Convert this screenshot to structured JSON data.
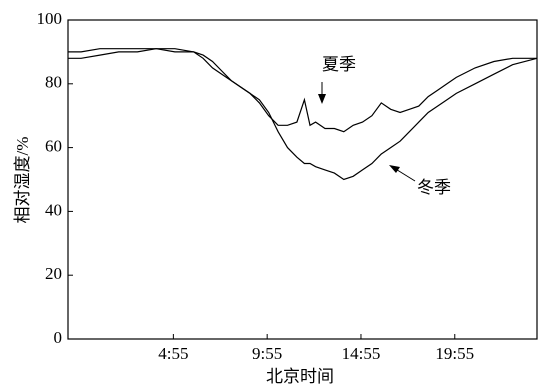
{
  "chart_data": {
    "type": "line",
    "x_label": "北京时间",
    "y_label": "相对湿度/%",
    "x": [
      -0.7,
      0,
      1,
      2,
      3,
      4,
      5,
      6,
      6.5,
      7,
      7.5,
      8,
      8.5,
      9,
      9.5,
      10,
      10.5,
      11,
      11.5,
      11.9,
      12.2,
      12.5,
      13,
      13.5,
      14,
      14.5,
      15,
      15.5,
      16,
      16.5,
      17,
      17.5,
      18,
      18.5,
      19,
      19.5,
      20,
      21,
      22,
      23,
      24.3
    ],
    "series": [
      {
        "name": "夏季",
        "color": "#000000",
        "values": [
          88,
          88,
          89,
          90,
          90,
          91,
          91,
          90,
          88,
          85,
          83,
          81,
          79,
          77,
          74,
          70,
          67,
          67,
          68,
          75,
          67,
          68,
          66,
          66,
          65,
          67,
          68,
          70,
          74,
          72,
          71,
          72,
          73,
          76,
          78,
          80,
          82,
          85,
          87,
          88,
          88
        ]
      },
      {
        "name": "冬季",
        "color": "#000000",
        "values": [
          90,
          90,
          91,
          91,
          91,
          91,
          90,
          90,
          89,
          87,
          84,
          81,
          79,
          77,
          75,
          71,
          65,
          60,
          57,
          55,
          55,
          54,
          53,
          52,
          50,
          51,
          53,
          55,
          58,
          60,
          62,
          65,
          68,
          71,
          73,
          75,
          77,
          80,
          83,
          86,
          88
        ]
      }
    ],
    "xlim": [
      -0.7,
      24.3
    ],
    "xticks": [
      {
        "value": 4.9167,
        "label": "4:55"
      },
      {
        "value": 9.9167,
        "label": "9:55"
      },
      {
        "value": 14.9167,
        "label": "14:55"
      },
      {
        "value": 19.9167,
        "label": "19:55"
      }
    ],
    "ylim": [
      0,
      100
    ],
    "yticks": [
      0,
      20,
      40,
      60,
      80,
      100
    ],
    "grid": false
  }
}
